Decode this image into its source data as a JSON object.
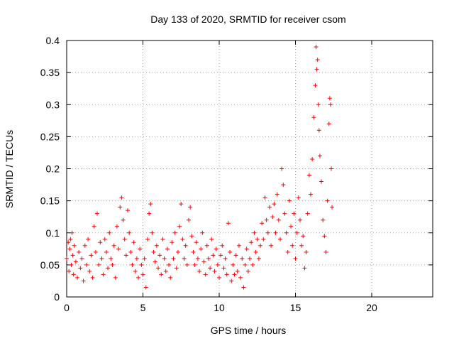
{
  "chart_data": {
    "type": "scatter",
    "title": "Day 133 of 2020, SRMTID for receiver csom",
    "xlabel": "GPS time / hours",
    "ylabel": "SRMTID / TECUs",
    "xlim": [
      0,
      24
    ],
    "ylim": [
      0,
      0.4
    ],
    "xticks": [
      0,
      5,
      10,
      15,
      20
    ],
    "yticks": [
      0,
      0.05,
      0.1,
      0.15,
      0.2,
      0.25,
      0.3,
      0.35,
      0.4
    ],
    "xtick_labels": [
      "0",
      "5",
      "10",
      "15",
      "20"
    ],
    "ytick_labels": [
      "0",
      "0.05",
      "0.1",
      "0.15",
      "0.2",
      "0.25",
      "0.3",
      "0.35",
      "0.4"
    ],
    "grid": true,
    "marker": "+",
    "color": "#ff0000",
    "series": [
      {
        "name": "SRMTID",
        "points": [
          [
            0.0,
            0.06
          ],
          [
            0.1,
            0.085
          ],
          [
            0.15,
            0.04
          ],
          [
            0.2,
            0.075
          ],
          [
            0.25,
            0.09
          ],
          [
            0.3,
            0.05
          ],
          [
            0.35,
            0.1
          ],
          [
            0.4,
            0.065
          ],
          [
            0.45,
            0.035
          ],
          [
            0.5,
            0.08
          ],
          [
            0.6,
            0.055
          ],
          [
            0.7,
            0.03
          ],
          [
            0.8,
            0.07
          ],
          [
            0.9,
            0.045
          ],
          [
            1.0,
            0.06
          ],
          [
            1.1,
            0.025
          ],
          [
            1.2,
            0.08
          ],
          [
            1.3,
            0.05
          ],
          [
            1.4,
            0.09
          ],
          [
            1.5,
            0.04
          ],
          [
            1.6,
            0.065
          ],
          [
            1.7,
            0.03
          ],
          [
            1.8,
            0.11
          ],
          [
            1.9,
            0.07
          ],
          [
            2.0,
            0.13
          ],
          [
            2.1,
            0.05
          ],
          [
            2.2,
            0.085
          ],
          [
            2.3,
            0.06
          ],
          [
            2.4,
            0.035
          ],
          [
            2.5,
            0.09
          ],
          [
            2.6,
            0.07
          ],
          [
            2.7,
            0.045
          ],
          [
            2.8,
            0.1
          ],
          [
            2.9,
            0.06
          ],
          [
            3.0,
            0.05
          ],
          [
            3.1,
            0.08
          ],
          [
            3.2,
            0.03
          ],
          [
            3.3,
            0.11
          ],
          [
            3.4,
            0.075
          ],
          [
            3.5,
            0.14
          ],
          [
            3.6,
            0.155
          ],
          [
            3.7,
            0.12
          ],
          [
            3.8,
            0.09
          ],
          [
            3.9,
            0.065
          ],
          [
            4.0,
            0.135
          ],
          [
            4.1,
            0.1
          ],
          [
            4.2,
            0.07
          ],
          [
            4.3,
            0.05
          ],
          [
            4.4,
            0.085
          ],
          [
            4.5,
            0.04
          ],
          [
            4.6,
            0.06
          ],
          [
            4.7,
            0.03
          ],
          [
            4.8,
            0.075
          ],
          [
            4.9,
            0.05
          ],
          [
            5.0,
            0.035
          ],
          [
            5.1,
            0.06
          ],
          [
            5.2,
            0.015
          ],
          [
            5.3,
            0.09
          ],
          [
            5.4,
            0.13
          ],
          [
            5.5,
            0.145
          ],
          [
            5.6,
            0.1
          ],
          [
            5.7,
            0.07
          ],
          [
            5.8,
            0.055
          ],
          [
            5.9,
            0.08
          ],
          [
            6.0,
            0.045
          ],
          [
            6.1,
            0.065
          ],
          [
            6.2,
            0.035
          ],
          [
            6.3,
            0.09
          ],
          [
            6.4,
            0.06
          ],
          [
            6.5,
            0.04
          ],
          [
            6.6,
            0.075
          ],
          [
            6.7,
            0.05
          ],
          [
            6.8,
            0.03
          ],
          [
            6.9,
            0.085
          ],
          [
            7.0,
            0.06
          ],
          [
            7.1,
            0.1
          ],
          [
            7.2,
            0.045
          ],
          [
            7.3,
            0.07
          ],
          [
            7.4,
            0.11
          ],
          [
            7.5,
            0.145
          ],
          [
            7.6,
            0.09
          ],
          [
            7.7,
            0.06
          ],
          [
            7.8,
            0.08
          ],
          [
            7.9,
            0.05
          ],
          [
            8.0,
            0.12
          ],
          [
            8.1,
            0.14
          ],
          [
            8.2,
            0.095
          ],
          [
            8.3,
            0.07
          ],
          [
            8.4,
            0.05
          ],
          [
            8.5,
            0.085
          ],
          [
            8.6,
            0.06
          ],
          [
            8.7,
            0.04
          ],
          [
            8.8,
            0.075
          ],
          [
            8.9,
            0.1
          ],
          [
            9.0,
            0.055
          ],
          [
            9.1,
            0.035
          ],
          [
            9.2,
            0.08
          ],
          [
            9.3,
            0.06
          ],
          [
            9.4,
            0.045
          ],
          [
            9.5,
            0.09
          ],
          [
            9.6,
            0.065
          ],
          [
            9.7,
            0.04
          ],
          [
            9.8,
            0.075
          ],
          [
            9.9,
            0.05
          ],
          [
            10.0,
            0.03
          ],
          [
            10.1,
            0.065
          ],
          [
            10.2,
            0.08
          ],
          [
            10.3,
            0.045
          ],
          [
            10.4,
            0.06
          ],
          [
            10.5,
            0.035
          ],
          [
            10.6,
            0.115
          ],
          [
            10.7,
            0.07
          ],
          [
            10.8,
            0.025
          ],
          [
            10.9,
            0.05
          ],
          [
            11.0,
            0.035
          ],
          [
            11.1,
            0.065
          ],
          [
            11.2,
            0.04
          ],
          [
            11.3,
            0.08
          ],
          [
            11.4,
            0.03
          ],
          [
            11.5,
            0.06
          ],
          [
            11.6,
            0.015
          ],
          [
            11.7,
            0.05
          ],
          [
            11.8,
            0.075
          ],
          [
            11.9,
            0.04
          ],
          [
            12.0,
            0.06
          ],
          [
            12.1,
            0.085
          ],
          [
            12.2,
            0.05
          ],
          [
            12.3,
            0.1
          ],
          [
            12.4,
            0.07
          ],
          [
            12.5,
            0.09
          ],
          [
            12.6,
            0.06
          ],
          [
            12.7,
            0.08
          ],
          [
            12.8,
            0.115
          ],
          [
            12.9,
            0.09
          ],
          [
            13.0,
            0.155
          ],
          [
            13.1,
            0.12
          ],
          [
            13.2,
            0.1
          ],
          [
            13.3,
            0.14
          ],
          [
            13.4,
            0.08
          ],
          [
            13.5,
            0.125
          ],
          [
            13.6,
            0.145
          ],
          [
            13.7,
            0.1
          ],
          [
            13.8,
            0.16
          ],
          [
            13.9,
            0.12
          ],
          [
            14.0,
            0.09
          ],
          [
            14.1,
            0.2
          ],
          [
            14.2,
            0.175
          ],
          [
            14.3,
            0.13
          ],
          [
            14.4,
            0.1
          ],
          [
            14.5,
            0.07
          ],
          [
            14.6,
            0.15
          ],
          [
            14.7,
            0.11
          ],
          [
            14.8,
            0.08
          ],
          [
            14.9,
            0.13
          ],
          [
            15.0,
            0.06
          ],
          [
            15.1,
            0.1
          ],
          [
            15.2,
            0.155
          ],
          [
            15.3,
            0.12
          ],
          [
            15.4,
            0.08
          ],
          [
            15.5,
            0.095
          ],
          [
            15.6,
            0.045
          ],
          [
            15.7,
            0.07
          ],
          [
            15.8,
            0.13
          ],
          [
            15.9,
            0.19
          ],
          [
            16.0,
            0.16
          ],
          [
            16.1,
            0.215
          ],
          [
            16.2,
            0.28
          ],
          [
            16.3,
            0.33
          ],
          [
            16.35,
            0.39
          ],
          [
            16.4,
            0.355
          ],
          [
            16.45,
            0.37
          ],
          [
            16.5,
            0.3
          ],
          [
            16.55,
            0.26
          ],
          [
            16.6,
            0.22
          ],
          [
            16.7,
            0.18
          ],
          [
            16.8,
            0.12
          ],
          [
            16.9,
            0.095
          ],
          [
            17.0,
            0.07
          ],
          [
            17.1,
            0.15
          ],
          [
            17.2,
            0.27
          ],
          [
            17.25,
            0.31
          ],
          [
            17.3,
            0.3
          ],
          [
            17.35,
            0.2
          ],
          [
            17.4,
            0.14
          ]
        ]
      }
    ]
  }
}
